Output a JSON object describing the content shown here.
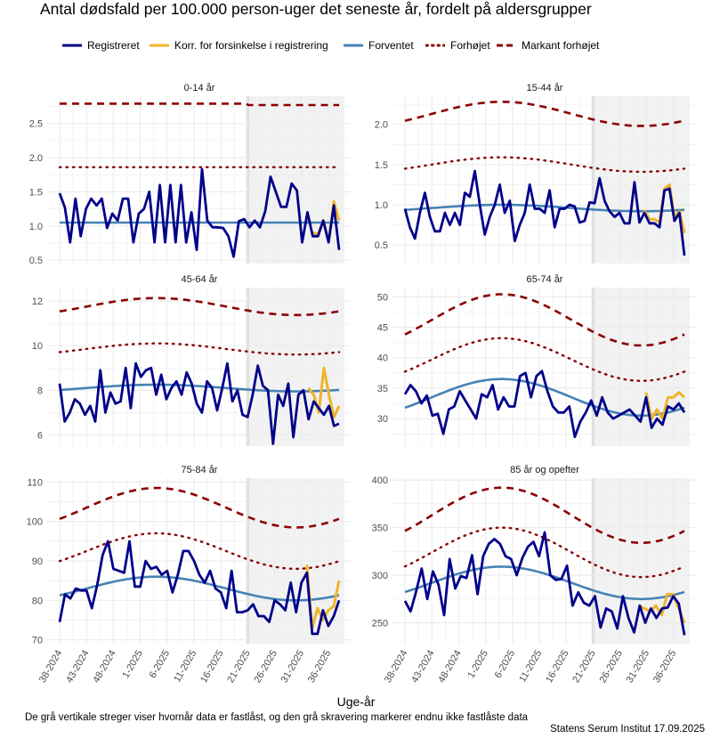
{
  "chart_data": {
    "type": "line",
    "title": "Antal dødsfald per 100.000 person-uger det seneste år, fordelt på aldersgrupper",
    "xlabel": "Uge-år",
    "caption": "De grå vertikale streger viser hvornår data er fastlåst, og den grå skravering markerer endnu ikke fastlåste data",
    "source": "Statens Serum Institut  17.09.2025",
    "x_ticks": [
      "38-2024",
      "43-2024",
      "48-2024",
      "1-2025",
      "6-2025",
      "11-2025",
      "16-2025",
      "21-2025",
      "26-2025",
      "31-2025",
      "36-2025"
    ],
    "legend": [
      {
        "label": "Registreret",
        "color": "#00008B",
        "style": "solid"
      },
      {
        "label": "Korr. for forsinkelse i registrering",
        "color": "#F0B429",
        "style": "solid"
      },
      {
        "label": "Forventet",
        "color": "#4682B4",
        "style": "solid"
      },
      {
        "label": "Forhøjet",
        "color": "#8B0000",
        "style": "dotted"
      },
      {
        "label": "Markant forhøjet",
        "color": "#8B0000",
        "style": "dashed"
      }
    ],
    "colors": {
      "registered": "#00008B",
      "corrected": "#F0B429",
      "expected": "#4682B4",
      "elevated": "#8B0000",
      "shade": "#ebebeb"
    },
    "week_count": 52,
    "shade_start_week": 35,
    "panels": [
      {
        "title": "0-14 år",
        "ylim": [
          0.45,
          2.9
        ],
        "yticks": [
          0.5,
          1.0,
          1.5,
          2.0,
          2.5
        ],
        "tick_labels": [
          "0.5",
          "1.0",
          "1.5",
          "2.0",
          "2.5"
        ],
        "registered": [
          1.48,
          1.27,
          0.76,
          1.4,
          0.85,
          1.25,
          1.4,
          1.3,
          1.4,
          0.97,
          1.18,
          1.08,
          1.4,
          1.4,
          0.76,
          1.18,
          1.25,
          1.5,
          0.76,
          1.6,
          0.76,
          1.6,
          0.76,
          1.6,
          0.76,
          1.2,
          0.65,
          1.83,
          1.08,
          0.98,
          0.98,
          0.97,
          0.85,
          0.55,
          1.07,
          1.1,
          0.98,
          1.08,
          0.98,
          1.22,
          1.72,
          1.5,
          1.28,
          1.28,
          1.62,
          1.52,
          0.76,
          1.2,
          0.85,
          0.85,
          1.08,
          0.76,
          1.3,
          0.65
        ],
        "corrected": [
          null,
          null,
          null,
          null,
          null,
          null,
          null,
          null,
          null,
          null,
          null,
          null,
          null,
          null,
          null,
          null,
          null,
          null,
          null,
          null,
          null,
          null,
          null,
          null,
          null,
          null,
          null,
          null,
          null,
          null,
          null,
          null,
          null,
          null,
          null,
          null,
          null,
          null,
          null,
          null,
          null,
          null,
          null,
          null,
          null,
          null,
          null,
          null,
          0.9,
          0.88,
          1.08,
          0.78,
          1.36,
          1.08
        ],
        "expected_const": 1.05,
        "expected_amp": 0.0,
        "elevated_const": 1.86,
        "elevated_amp": 0.0,
        "marked_const": 2.79,
        "marked_amp": 0.0
      },
      {
        "title": "15-44 år",
        "ylim": [
          0.27,
          2.35
        ],
        "yticks": [
          0.5,
          1.0,
          1.5,
          2.0
        ],
        "tick_labels": [
          "0.5",
          "1.0",
          "1.5",
          "2.0"
        ],
        "registered": [
          0.95,
          0.72,
          0.58,
          0.9,
          1.15,
          0.85,
          0.67,
          0.67,
          0.9,
          0.75,
          0.9,
          0.75,
          1.15,
          1.1,
          1.42,
          1.0,
          0.63,
          0.85,
          1.0,
          1.25,
          0.9,
          1.05,
          0.55,
          0.75,
          0.9,
          1.25,
          0.95,
          0.95,
          0.9,
          1.18,
          0.72,
          0.95,
          0.95,
          1.0,
          0.98,
          0.78,
          0.8,
          1.03,
          1.02,
          1.33,
          1.05,
          0.92,
          0.85,
          0.9,
          0.77,
          0.77,
          1.28,
          0.78,
          0.9,
          0.77,
          0.77,
          0.72,
          1.18,
          1.2,
          0.8,
          0.9,
          0.37
        ],
        "corrected": [
          null,
          null,
          null,
          null,
          null,
          null,
          null,
          null,
          null,
          null,
          null,
          null,
          null,
          null,
          null,
          null,
          null,
          null,
          null,
          null,
          null,
          null,
          null,
          null,
          null,
          null,
          null,
          null,
          null,
          null,
          null,
          null,
          null,
          null,
          null,
          null,
          null,
          null,
          null,
          null,
          null,
          null,
          null,
          null,
          null,
          null,
          null,
          null,
          0.93,
          0.82,
          0.82,
          0.78,
          1.2,
          1.25,
          0.85,
          0.92,
          0.65
        ],
        "expected_const": 0.96,
        "expected_amp": 0.04,
        "elevated_const": 1.5,
        "elevated_amp": 0.09,
        "marked_const": 2.13,
        "marked_amp": 0.15
      },
      {
        "title": "45-64 år",
        "ylim": [
          5.5,
          12.6
        ],
        "yticks": [
          6,
          8,
          10,
          12
        ],
        "tick_labels": [
          "6",
          "8",
          "10",
          "12"
        ],
        "registered": [
          8.3,
          6.6,
          7.0,
          7.6,
          7.4,
          6.9,
          7.3,
          6.6,
          8.9,
          7.0,
          7.9,
          7.4,
          7.5,
          9.0,
          7.2,
          9.2,
          8.6,
          8.9,
          9.0,
          7.8,
          8.7,
          7.6,
          8.1,
          8.4,
          7.8,
          8.8,
          8.3,
          7.4,
          7.0,
          8.4,
          8.1,
          7.1,
          8.1,
          9.2,
          7.5,
          8.0,
          6.9,
          6.8,
          7.8,
          9.1,
          8.2,
          8.0,
          5.6,
          7.8,
          7.3,
          8.3,
          5.9,
          7.8,
          8.0,
          6.7,
          7.5,
          7.2,
          6.9,
          7.3,
          6.4,
          6.5
        ],
        "corrected": [
          null,
          null,
          null,
          null,
          null,
          null,
          null,
          null,
          null,
          null,
          null,
          null,
          null,
          null,
          null,
          null,
          null,
          null,
          null,
          null,
          null,
          null,
          null,
          null,
          null,
          null,
          null,
          null,
          null,
          null,
          null,
          null,
          null,
          null,
          null,
          null,
          null,
          null,
          null,
          null,
          null,
          null,
          null,
          null,
          null,
          null,
          null,
          null,
          null,
          8.1,
          7.8,
          7.0,
          9.0,
          7.8,
          6.8,
          7.3
        ],
        "expected_const": 8.1,
        "expected_amp": 0.15,
        "elevated_const": 9.85,
        "elevated_amp": 0.25,
        "marked_const": 11.75,
        "marked_amp": 0.38
      },
      {
        "title": "65-74 år",
        "ylim": [
          25.5,
          51.5
        ],
        "yticks": [
          30,
          35,
          40,
          45,
          50
        ],
        "tick_labels": [
          "30",
          "35",
          "40",
          "45",
          "50"
        ],
        "registered": [
          34,
          35.5,
          34.5,
          32.5,
          33.8,
          30.5,
          30.8,
          27.5,
          31.5,
          32,
          34.5,
          33,
          31.5,
          30,
          34,
          33.5,
          35.5,
          31.5,
          33.5,
          32,
          32,
          37,
          37.5,
          33.5,
          37,
          37.8,
          34.5,
          32,
          31,
          31,
          32,
          27,
          29.5,
          31,
          33,
          30.5,
          33.5,
          31,
          30,
          30.5,
          31,
          31.5,
          30.5,
          29.5,
          33.5,
          28.5,
          30,
          29,
          32,
          31.5,
          32.5,
          31
        ],
        "corrected": [
          null,
          null,
          null,
          null,
          null,
          null,
          null,
          null,
          null,
          null,
          null,
          null,
          null,
          null,
          null,
          null,
          null,
          null,
          null,
          null,
          null,
          null,
          null,
          null,
          null,
          null,
          null,
          null,
          null,
          null,
          null,
          null,
          null,
          null,
          null,
          null,
          null,
          null,
          null,
          null,
          null,
          null,
          null,
          null,
          34.3,
          30,
          31.5,
          30,
          33.5,
          33.5,
          34.3,
          33.5
        ],
        "expected_const": 33.5,
        "expected_amp": 3.0,
        "elevated_const": 39.7,
        "elevated_amp": 3.5,
        "marked_const": 46.2,
        "marked_amp": 4.2
      },
      {
        "title": "75-84 år",
        "ylim": [
          69,
          111
        ],
        "yticks": [
          70,
          80,
          90,
          100,
          110
        ],
        "tick_labels": [
          "70",
          "80",
          "90",
          "100",
          "110"
        ],
        "registered": [
          74.5,
          81.5,
          80.5,
          83,
          82.5,
          82.5,
          78,
          84,
          91.5,
          95,
          88,
          87.5,
          87,
          95,
          83.5,
          83.5,
          90,
          88,
          88.5,
          86.5,
          87.5,
          82,
          86.5,
          92.5,
          92.5,
          90,
          86.5,
          84.5,
          87.5,
          83,
          82,
          78,
          87.5,
          77,
          77,
          77.5,
          79,
          76,
          76,
          74.5,
          80,
          79,
          77.5,
          84.5,
          77,
          84.5,
          87,
          71.5,
          71.5,
          77.5,
          73.5,
          76,
          80
        ],
        "corrected": [
          null,
          null,
          null,
          null,
          null,
          null,
          null,
          null,
          null,
          null,
          null,
          null,
          null,
          null,
          null,
          null,
          null,
          null,
          null,
          null,
          null,
          null,
          null,
          null,
          null,
          null,
          null,
          null,
          null,
          null,
          null,
          null,
          null,
          null,
          null,
          null,
          null,
          null,
          null,
          null,
          null,
          null,
          null,
          null,
          null,
          null,
          89,
          73,
          78,
          75,
          77.5,
          78.5,
          85
        ],
        "expected_const": 83.0,
        "expected_amp": 3.0,
        "elevated_const": 92.5,
        "elevated_amp": 4.5,
        "marked_const": 103.5,
        "marked_amp": 5.0
      },
      {
        "title": "85 år og opefter",
        "ylim": [
          228,
          402
        ],
        "yticks": [
          250,
          300,
          350,
          400
        ],
        "tick_labels": [
          "250",
          "300",
          "350",
          "400"
        ],
        "registered": [
          273,
          262,
          283,
          307,
          275,
          304,
          290,
          258,
          317,
          286,
          299,
          297,
          321,
          280,
          320,
          333,
          338,
          333,
          320,
          317,
          300,
          318,
          330,
          335,
          320,
          345,
          300,
          295,
          296,
          310,
          268,
          282,
          271,
          268,
          278,
          245,
          265,
          262,
          244,
          278,
          255,
          240,
          268,
          250,
          265,
          255,
          265,
          266,
          278,
          270,
          237
        ],
        "corrected": [
          null,
          null,
          null,
          null,
          null,
          null,
          null,
          null,
          null,
          null,
          null,
          null,
          null,
          null,
          null,
          null,
          null,
          null,
          null,
          null,
          null,
          null,
          null,
          null,
          null,
          null,
          null,
          null,
          null,
          null,
          null,
          null,
          null,
          null,
          null,
          null,
          null,
          null,
          null,
          null,
          null,
          268,
          265,
          262,
          268,
          258,
          280,
          280,
          265,
          250
        ],
        "expected_const": 292,
        "expected_amp": 17,
        "elevated_const": 324,
        "elevated_amp": 26,
        "marked_const": 363,
        "marked_amp": 29
      }
    ]
  }
}
